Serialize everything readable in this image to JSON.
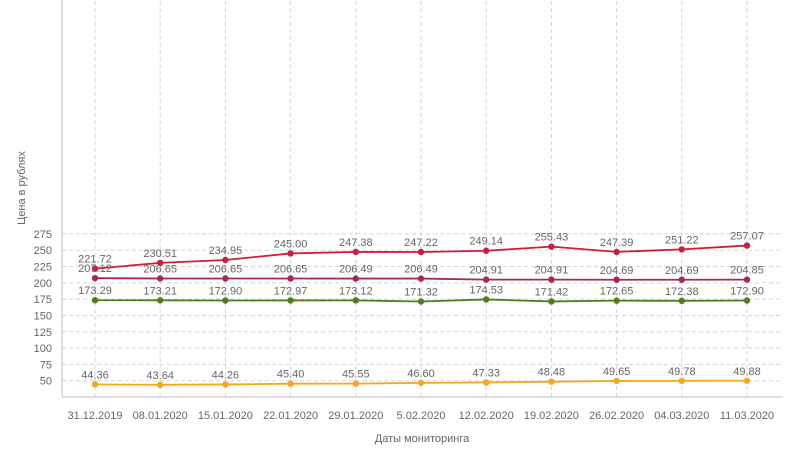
{
  "chart_data": {
    "type": "line",
    "title": "",
    "xlabel": "Даты мониторинга",
    "ylabel": "Цена в рублях",
    "ylim": [
      25,
      275
    ],
    "yticks": [
      50,
      75,
      100,
      125,
      150,
      175,
      200,
      225,
      250,
      275
    ],
    "grid": true,
    "categories": [
      "31.12.2019",
      "08.01.2020",
      "15.01.2020",
      "22.01.2020",
      "29.01.2020",
      "5.02.2020",
      "12.02.2020",
      "19.02.2020",
      "26.02.2020",
      "04.03.2020",
      "11.03.2020"
    ],
    "series": [
      {
        "color": "#cc1e3a",
        "values": [
          221.72,
          230.51,
          234.95,
          245.0,
          247.38,
          247.22,
          249.14,
          255.43,
          247.39,
          251.22,
          257.07
        ]
      },
      {
        "color": "#a3285e",
        "values": [
          207.12,
          206.65,
          206.65,
          206.65,
          206.49,
          206.49,
          204.91,
          204.91,
          204.69,
          204.69,
          204.85
        ]
      },
      {
        "color": "#4e7f1a",
        "values": [
          173.29,
          173.21,
          172.9,
          172.97,
          173.12,
          171.32,
          174.53,
          171.42,
          172.65,
          172.38,
          172.9
        ]
      },
      {
        "color": "#f5a623",
        "values": [
          44.36,
          43.64,
          44.26,
          45.4,
          45.55,
          46.6,
          47.33,
          48.48,
          49.65,
          49.78,
          49.88
        ]
      }
    ]
  }
}
